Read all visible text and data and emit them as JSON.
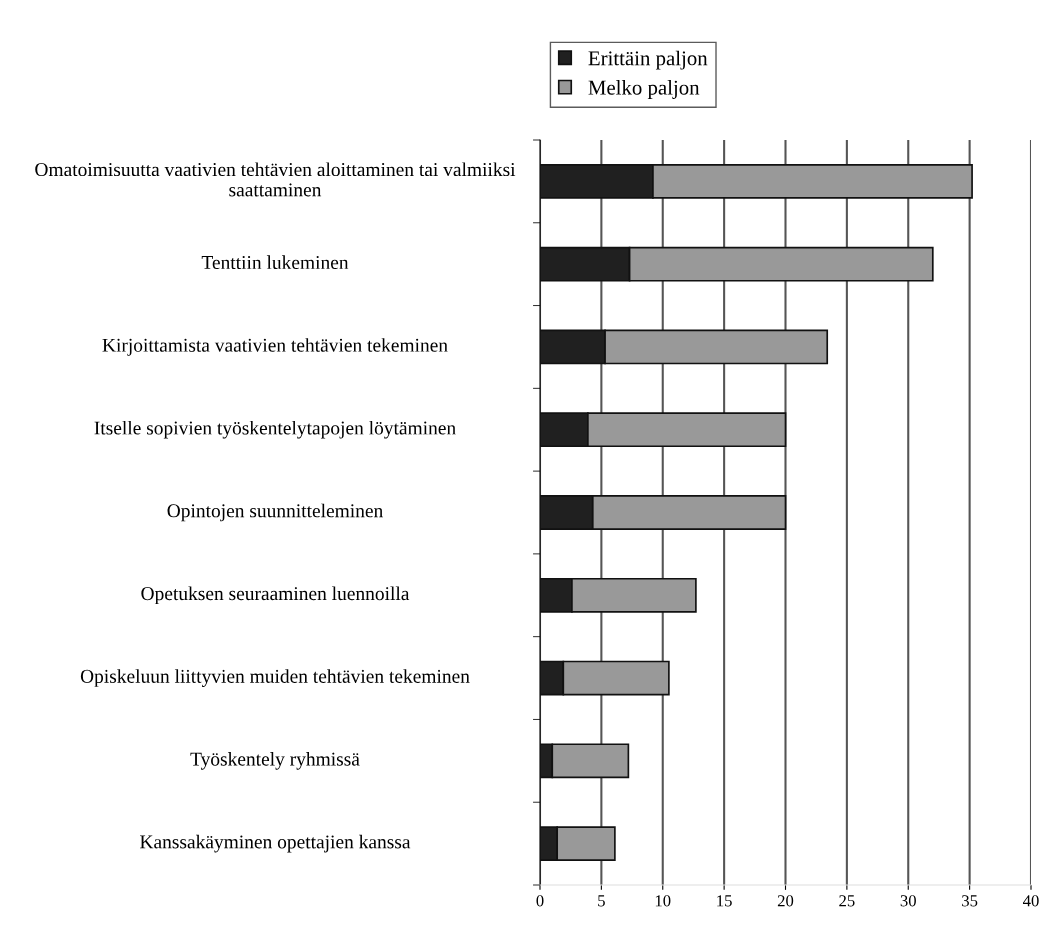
{
  "chart_data": {
    "type": "bar",
    "orientation": "horizontal",
    "stacked": true,
    "categories": [
      "Omatoimisuutta vaativien tehtävien aloittaminen tai valmiiksi saattaminen",
      "Tenttiin lukeminen",
      "Kirjoittamista vaativien tehtävien tekeminen",
      "Itselle sopivien työskentelytapojen löytäminen",
      "Opintojen suunnitteleminen",
      "Opetuksen seuraaminen luennoilla",
      "Opiskeluun liittyvien muiden tehtävien tekeminen",
      "Työskentely ryhmissä",
      "Kanssakäyminen opettajien kanssa"
    ],
    "series": [
      {
        "name": "Erittäin paljon",
        "color": "#202020",
        "values": [
          9.2,
          7.3,
          5.3,
          3.9,
          4.3,
          2.6,
          1.9,
          1.0,
          1.4
        ]
      },
      {
        "name": "Melko paljon",
        "color": "#999999",
        "values": [
          26.0,
          24.7,
          18.1,
          16.1,
          15.7,
          10.1,
          8.6,
          6.2,
          4.7
        ]
      }
    ],
    "xlim": [
      0,
      40
    ],
    "xticks": [
      0,
      5,
      10,
      15,
      20,
      25,
      30,
      35,
      40
    ],
    "grid": "x",
    "legend": "top"
  }
}
